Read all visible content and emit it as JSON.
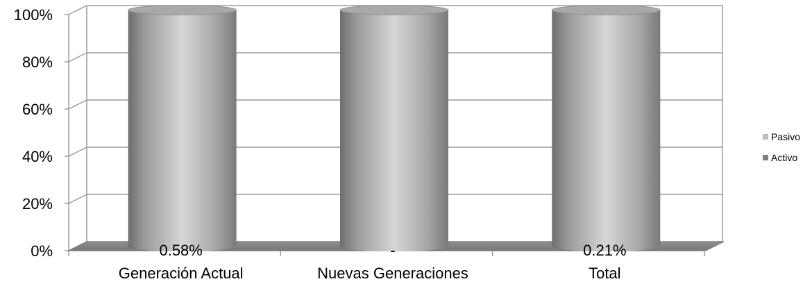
{
  "chart_data": {
    "type": "bar",
    "stacked": true,
    "percent_stacked": true,
    "shape": "cylinder",
    "categories": [
      "Generación Actual",
      "Nuevas Generaciones",
      "Total"
    ],
    "series": [
      {
        "name": "Activo",
        "values": [
          0.58,
          0,
          0.21
        ],
        "color": "#7f7f7f"
      },
      {
        "name": "Pasivo",
        "values": [
          99.42,
          100,
          99.79
        ],
        "color": "#bfbfbf"
      }
    ],
    "data_labels": [
      "0.58%",
      "-",
      "0.21%"
    ],
    "y_ticks": [
      "0%",
      "20%",
      "40%",
      "60%",
      "80%",
      "100%"
    ],
    "ylim": [
      0,
      100
    ],
    "grid": true,
    "legend_position": "right",
    "legend": [
      "Pasivo",
      "Activo"
    ]
  }
}
